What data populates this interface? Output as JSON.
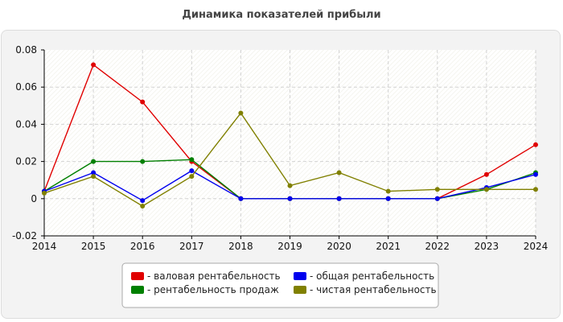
{
  "chart_data": {
    "type": "line",
    "title": "Динамика показателей прибыли",
    "xlabel": "",
    "ylabel": "",
    "x": [
      "2014",
      "2015",
      "2016",
      "2017",
      "2018",
      "2019",
      "2020",
      "2021",
      "2022",
      "2023",
      "2024"
    ],
    "ylim": [
      -0.02,
      0.08
    ],
    "yticks": [
      -0.02,
      0,
      0.02,
      0.04,
      0.06,
      0.08
    ],
    "ytick_labels": [
      "-0.02",
      "0",
      "0.02",
      "0.04",
      "0.06",
      "0.08"
    ],
    "grid": true,
    "legend_position": "bottom-center",
    "series": [
      {
        "name": "- валовая рентабельность",
        "color": "#e00000",
        "values": [
          0.004,
          0.072,
          0.052,
          0.02,
          0.0,
          0.0,
          0.0,
          0.0,
          0.0,
          0.013,
          0.029
        ]
      },
      {
        "name": "- рентабельность продаж",
        "color": "#008000",
        "values": [
          0.004,
          0.02,
          0.02,
          0.021,
          0.0,
          0.0,
          0.0,
          0.0,
          0.0,
          0.005,
          0.014
        ]
      },
      {
        "name": "- общая рентабельность",
        "color": "#0000ee",
        "values": [
          0.004,
          0.014,
          -0.001,
          0.015,
          0.0,
          0.0,
          0.0,
          0.0,
          0.0,
          0.006,
          0.013
        ]
      },
      {
        "name": "- чистая рентабельность",
        "color": "#808000",
        "values": [
          0.003,
          0.012,
          -0.004,
          0.012,
          0.046,
          0.007,
          0.014,
          0.004,
          0.005,
          0.005,
          0.005
        ]
      }
    ]
  }
}
